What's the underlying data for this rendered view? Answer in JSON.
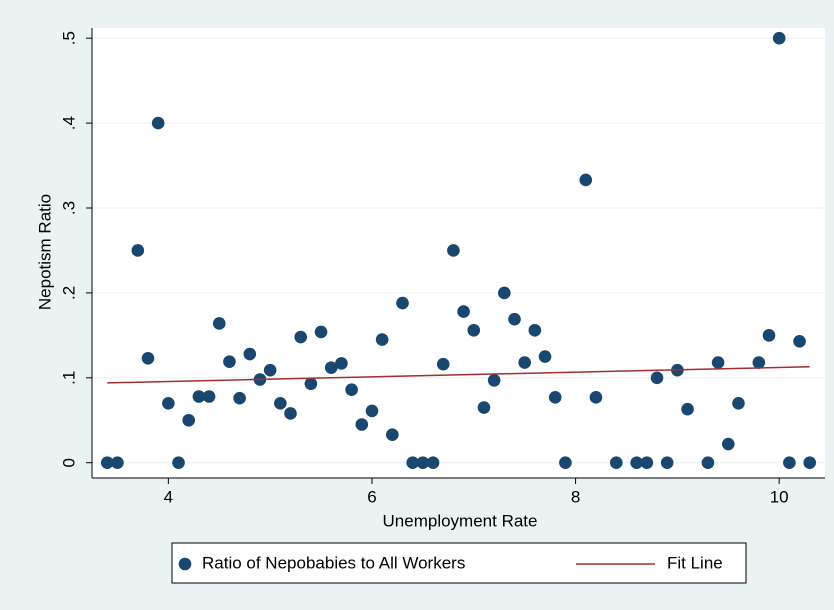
{
  "chart_data": {
    "type": "scatter",
    "x_label": "Unemployment Rate",
    "y_label": "Nepotism Ratio",
    "xlim": [
      3.25,
      10.45
    ],
    "ylim": [
      -0.018,
      0.512
    ],
    "xticks": [
      4,
      6,
      8,
      10
    ],
    "yticks": [
      0,
      {
        "value": 0.1,
        "label": ".1"
      },
      {
        "value": 0.2,
        "label": ".2"
      },
      {
        "value": 0.3,
        "label": ".3"
      },
      {
        "value": 0.4,
        "label": ".4"
      },
      {
        "value": 0.5,
        "label": ".5"
      }
    ],
    "grid": true,
    "series": [
      {
        "name": "Ratio of Nepobabies to All Workers",
        "type": "scatter",
        "color": "#1a476f",
        "x": [
          3.4,
          3.5,
          3.7,
          3.8,
          3.9,
          4.0,
          4.1,
          4.2,
          4.3,
          4.4,
          4.5,
          4.6,
          4.7,
          4.8,
          4.9,
          5.0,
          5.1,
          5.2,
          5.3,
          5.4,
          5.5,
          5.6,
          5.7,
          5.8,
          5.9,
          6.0,
          6.1,
          6.2,
          6.3,
          6.4,
          6.5,
          6.6,
          6.7,
          6.8,
          6.9,
          7.0,
          7.1,
          7.2,
          7.3,
          7.4,
          7.5,
          7.6,
          7.7,
          7.8,
          7.9,
          8.1,
          8.2,
          8.4,
          8.6,
          8.7,
          8.8,
          8.9,
          9.0,
          9.1,
          9.3,
          9.4,
          9.5,
          9.6,
          9.8,
          9.9,
          10.0,
          10.1,
          10.2,
          10.3
        ],
        "values": [
          0,
          0,
          0.25,
          0.123,
          0.4,
          0.07,
          0,
          0.05,
          0.078,
          0.078,
          0.164,
          0.119,
          0.076,
          0.128,
          0.098,
          0.109,
          0.07,
          0.058,
          0.148,
          0.093,
          0.154,
          0.112,
          0.117,
          0.086,
          0.045,
          0.061,
          0.145,
          0.033,
          0.188,
          0,
          0,
          0,
          0.116,
          0.25,
          0.178,
          0.156,
          0.065,
          0.097,
          0.2,
          0.169,
          0.118,
          0.156,
          0.125,
          0.077,
          0,
          0.333,
          0.077,
          0,
          0,
          0,
          0.1,
          0,
          0.109,
          0.063,
          0,
          0.118,
          0.022,
          0.07,
          0.118,
          0.15,
          0.5,
          0,
          0.143,
          0
        ]
      },
      {
        "name": "Fit Line",
        "type": "line",
        "color": "#a0302e",
        "x": [
          3.4,
          10.3
        ],
        "values": [
          0.094,
          0.113
        ]
      }
    ]
  }
}
